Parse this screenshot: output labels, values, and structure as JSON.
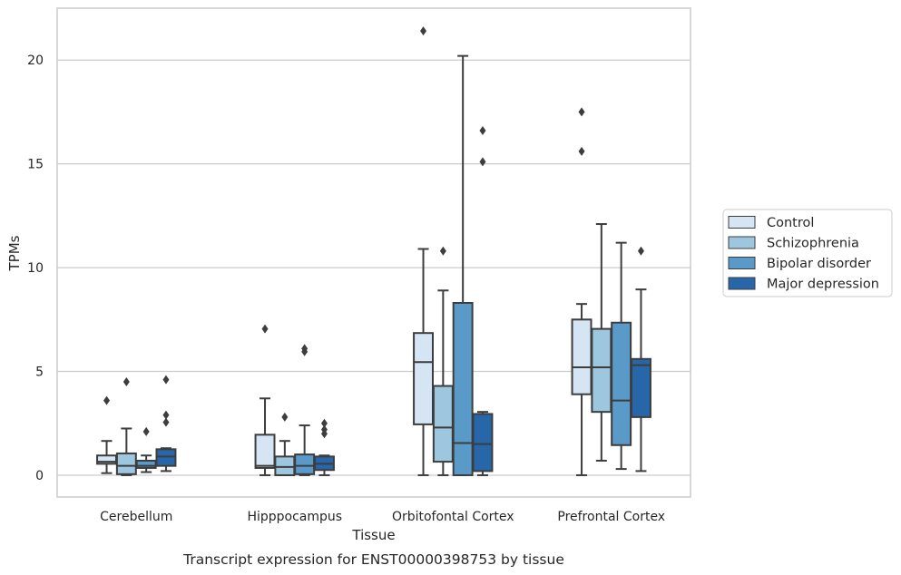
{
  "caption": "Transcript expression for ENST00000398753 by tissue",
  "chart_data": {
    "type": "box",
    "xlabel": "Tissue",
    "ylabel": "TPMs",
    "ylim": [
      -1.05,
      22.5
    ],
    "yticks": [
      0,
      5,
      10,
      15,
      20
    ],
    "grid": "horizontal",
    "legend_position": "right",
    "categories": [
      "Cerebellum",
      "Hipppocampus",
      "Orbitofontal Cortex",
      "Prefrontal Cortex"
    ],
    "series": [
      {
        "name": "Control",
        "color": "#d5e5f4",
        "boxes": [
          {
            "whislo": 0.1,
            "q1": 0.55,
            "med": 0.65,
            "q3": 0.95,
            "whishi": 1.65,
            "fliers": [
              3.6
            ]
          },
          {
            "whislo": 0.0,
            "q1": 0.35,
            "med": 0.45,
            "q3": 1.95,
            "whishi": 3.7,
            "fliers": [
              7.05
            ]
          },
          {
            "whislo": 0.0,
            "q1": 2.45,
            "med": 5.45,
            "q3": 6.85,
            "whishi": 10.9,
            "fliers": [
              21.4
            ]
          },
          {
            "whislo": 0.0,
            "q1": 3.9,
            "med": 5.2,
            "q3": 7.5,
            "whishi": 8.25,
            "fliers": [
              15.6,
              17.5
            ]
          }
        ]
      },
      {
        "name": "Schizophrenia",
        "color": "#9dc7df",
        "boxes": [
          {
            "whislo": 0.0,
            "q1": 0.05,
            "med": 0.45,
            "q3": 1.05,
            "whishi": 2.25,
            "fliers": [
              4.5
            ]
          },
          {
            "whislo": 0.0,
            "q1": 0.0,
            "med": 0.4,
            "q3": 0.9,
            "whishi": 1.65,
            "fliers": [
              2.8
            ]
          },
          {
            "whislo": 0.0,
            "q1": 0.65,
            "med": 2.3,
            "q3": 4.3,
            "whishi": 8.9,
            "fliers": [
              10.8
            ]
          },
          {
            "whislo": 0.7,
            "q1": 3.05,
            "med": 5.2,
            "q3": 7.05,
            "whishi": 12.1,
            "fliers": []
          }
        ]
      },
      {
        "name": "Bipolar disorder",
        "color": "#5a9ac8",
        "boxes": [
          {
            "whislo": 0.15,
            "q1": 0.35,
            "med": 0.45,
            "q3": 0.7,
            "whishi": 0.95,
            "fliers": [
              2.1
            ]
          },
          {
            "whislo": 0.0,
            "q1": 0.05,
            "med": 0.45,
            "q3": 1.0,
            "whishi": 2.4,
            "fliers": [
              5.95,
              6.1
            ]
          },
          {
            "whislo": 0.0,
            "q1": 0.0,
            "med": 1.55,
            "q3": 8.3,
            "whishi": 20.2,
            "fliers": []
          },
          {
            "whislo": 0.3,
            "q1": 1.45,
            "med": 3.6,
            "q3": 7.35,
            "whishi": 11.2,
            "fliers": []
          }
        ]
      },
      {
        "name": "Major depression",
        "color": "#2767a9",
        "boxes": [
          {
            "whislo": 0.2,
            "q1": 0.45,
            "med": 0.9,
            "q3": 1.25,
            "whishi": 1.3,
            "fliers": [
              2.55,
              2.9,
              4.6
            ]
          },
          {
            "whislo": 0.0,
            "q1": 0.25,
            "med": 0.55,
            "q3": 0.9,
            "whishi": 0.95,
            "fliers": [
              2.0,
              2.2,
              2.5
            ]
          },
          {
            "whislo": 0.0,
            "q1": 0.2,
            "med": 1.5,
            "q3": 2.95,
            "whishi": 3.05,
            "fliers": [
              15.1,
              16.6
            ]
          },
          {
            "whislo": 0.2,
            "q1": 2.8,
            "med": 5.3,
            "q3": 5.6,
            "whishi": 8.95,
            "fliers": [
              10.8
            ]
          }
        ]
      }
    ]
  }
}
